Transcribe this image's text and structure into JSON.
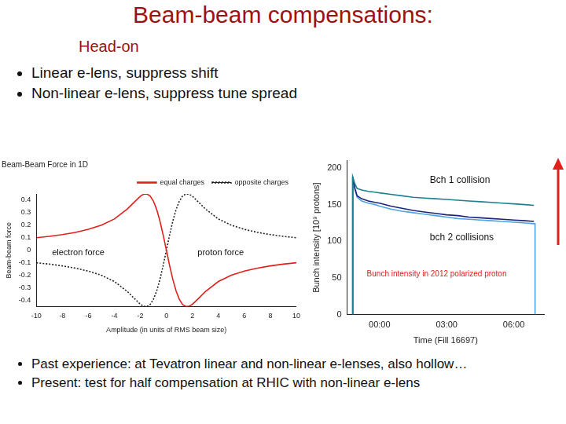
{
  "title": "Beam-beam compensations:",
  "subtitle": "Head-on",
  "bullets": [
    "Linear e-lens, suppress shift",
    "Non-linear e-lens, suppress tune spread"
  ],
  "footer_bullets": [
    "Past experience: at Tevatron linear and non-linear e-lenses, also hollow…",
    "Present: test for half compensation at RHIC with non-linear e-lens"
  ],
  "chart_data": [
    {
      "type": "line",
      "title": "Beam-Beam Force in 1D",
      "x_label": "Amplitude (in units of RMS beam size)",
      "y_label": "Beam-beam force",
      "x": [
        -10,
        -9,
        -8,
        -7,
        -6,
        -5,
        -4,
        -3,
        -2.5,
        -2,
        -1.75,
        -1.5,
        -1.25,
        -1,
        -0.75,
        -0.5,
        -0.25,
        0,
        0.25,
        0.5,
        0.75,
        1,
        1.25,
        1.5,
        1.75,
        2,
        2.5,
        3,
        4,
        5,
        6,
        7,
        8,
        9,
        10
      ],
      "series": [
        {
          "name": "equal charges",
          "color": "#e0201b",
          "line_style": "solid",
          "marker": "none",
          "values": [
            0.1,
            0.111,
            0.125,
            0.143,
            0.167,
            0.2,
            0.25,
            0.33,
            0.382,
            0.432,
            0.448,
            0.45,
            0.434,
            0.393,
            0.327,
            0.235,
            0.123,
            0,
            -0.123,
            -0.235,
            -0.327,
            -0.393,
            -0.434,
            -0.45,
            -0.448,
            -0.432,
            -0.382,
            -0.33,
            -0.25,
            -0.2,
            -0.167,
            -0.143,
            -0.125,
            -0.111,
            -0.1
          ]
        },
        {
          "name": "opposite charges",
          "color": "#222222",
          "line_style": "dotted",
          "marker": "none",
          "values": [
            -0.1,
            -0.111,
            -0.125,
            -0.143,
            -0.167,
            -0.2,
            -0.25,
            -0.33,
            -0.382,
            -0.432,
            -0.448,
            -0.45,
            -0.434,
            -0.393,
            -0.327,
            -0.235,
            -0.123,
            0,
            0.123,
            0.235,
            0.327,
            0.393,
            0.434,
            0.45,
            0.448,
            0.432,
            0.382,
            0.33,
            0.25,
            0.2,
            0.167,
            0.143,
            0.125,
            0.111,
            0.1
          ]
        }
      ],
      "xlim": [
        -10,
        10
      ],
      "xticks": [
        -10,
        -8,
        -6,
        -4,
        -2,
        0,
        2,
        4,
        6,
        8,
        10
      ],
      "ylim": [
        -0.45,
        0.45
      ],
      "yticks": [
        -0.4,
        -0.3,
        -0.2,
        -0.1,
        0,
        0.1,
        0.2,
        0.3,
        0.4
      ],
      "grid": false,
      "legend": "upper right",
      "annotations": [
        "electron force",
        "proton force"
      ]
    },
    {
      "type": "line",
      "x_label": "Time (Fill 16697)",
      "y_label": "Bunch intensity [10⁹ protons]",
      "x": [
        -1.2,
        -1.2,
        -1.1,
        -1.0,
        -0.8,
        -0.5,
        -0.2,
        0,
        0.5,
        1,
        1.5,
        2,
        2.5,
        3,
        3.5,
        4,
        4.5,
        5,
        5.5,
        6,
        6.5,
        6.9,
        6.95,
        6.95
      ],
      "series": [
        {
          "color": "#1f7f8f",
          "line_style": "solid",
          "marker": "none",
          "values": [
            0,
            188,
            178,
            172,
            170,
            168,
            167,
            166,
            164,
            162,
            160,
            159,
            158,
            157,
            156,
            155,
            154,
            153,
            152,
            151,
            150,
            149,
            null,
            null
          ]
        },
        {
          "color": "#1a237e",
          "line_style": "solid",
          "marker": "none",
          "values": [
            0,
            188,
            172,
            162,
            158,
            155,
            153,
            152,
            148,
            145,
            142,
            140,
            138,
            136,
            135,
            133,
            132,
            131,
            130,
            129,
            128,
            127,
            null,
            null
          ]
        },
        {
          "color": "#4fa3e0",
          "line_style": "solid",
          "marker": "none",
          "values": [
            0,
            188,
            170,
            160,
            155,
            152,
            150,
            148,
            144,
            141,
            139,
            137,
            135,
            133,
            131,
            130,
            129,
            128,
            127,
            126,
            125,
            124,
            124,
            0
          ]
        }
      ],
      "xlim": [
        -1.45,
        7.35
      ],
      "xticks": [
        {
          "value": 0,
          "label": "00:00"
        },
        {
          "value": 3,
          "label": "03:00"
        },
        {
          "value": 6,
          "label": "06:00"
        }
      ],
      "ylim": [
        0,
        210
      ],
      "yticks": [
        0,
        50,
        100,
        150,
        200
      ],
      "grid": false,
      "annotations": [
        "Bch 1 collision",
        "bch 2 collisions",
        "Bunch intensity in 2012 polarized proton"
      ]
    }
  ]
}
